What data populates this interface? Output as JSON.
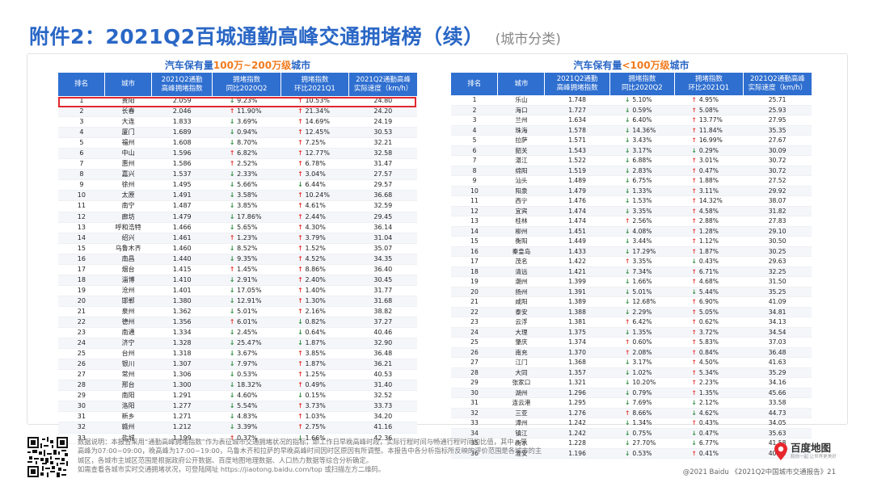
{
  "page": {
    "title": "附件2：2021Q2百城通勤高峰交通拥堵榜（续）",
    "subtitle": "(城市分类)"
  },
  "left_panel": {
    "title_prefix": "汽车保有量",
    "title_highlight": "100万~200万级",
    "title_suffix": "城市",
    "headers": [
      "排名",
      "城市",
      "2021Q2通勤\n高峰拥堵指数",
      "拥堵指数\n同比2020Q2",
      "拥堵指数\n环比2021Q1",
      "2021Q2通勤高峰\n实际速度（km/h）"
    ],
    "rows": [
      [
        "1",
        "贵阳",
        "2.059",
        "down",
        "9.23%",
        "up",
        "10.53%",
        "24.80"
      ],
      [
        "2",
        "长春",
        "2.046",
        "up",
        "11.90%",
        "up",
        "21.34%",
        "24.20"
      ],
      [
        "3",
        "大连",
        "1.833",
        "down",
        "3.69%",
        "up",
        "14.69%",
        "24.19"
      ],
      [
        "4",
        "厦门",
        "1.689",
        "down",
        "0.94%",
        "up",
        "12.45%",
        "30.53"
      ],
      [
        "5",
        "福州",
        "1.608",
        "down",
        "8.70%",
        "up",
        "7.25%",
        "32.21"
      ],
      [
        "6",
        "中山",
        "1.596",
        "up",
        "6.82%",
        "up",
        "12.77%",
        "32.58"
      ],
      [
        "7",
        "惠州",
        "1.586",
        "up",
        "2.52%",
        "up",
        "6.78%",
        "31.47"
      ],
      [
        "8",
        "嘉兴",
        "1.537",
        "down",
        "2.33%",
        "up",
        "3.04%",
        "27.57"
      ],
      [
        "9",
        "徐州",
        "1.495",
        "down",
        "5.66%",
        "down",
        "6.44%",
        "29.57"
      ],
      [
        "10",
        "太原",
        "1.491",
        "down",
        "3.58%",
        "up",
        "10.24%",
        "36.68"
      ],
      [
        "11",
        "南宁",
        "1.487",
        "down",
        "3.85%",
        "up",
        "4.61%",
        "32.59"
      ],
      [
        "12",
        "廊坊",
        "1.479",
        "down",
        "17.86%",
        "up",
        "2.44%",
        "29.45"
      ],
      [
        "13",
        "呼和浩特",
        "1.466",
        "down",
        "5.65%",
        "up",
        "4.30%",
        "36.14"
      ],
      [
        "14",
        "绍兴",
        "1.461",
        "up",
        "1.23%",
        "up",
        "3.79%",
        "31.04"
      ],
      [
        "15",
        "乌鲁木齐",
        "1.460",
        "down",
        "8.52%",
        "up",
        "1.52%",
        "35.07"
      ],
      [
        "16",
        "南昌",
        "1.440",
        "down",
        "9.35%",
        "up",
        "4.52%",
        "34.35"
      ],
      [
        "17",
        "烟台",
        "1.415",
        "up",
        "1.45%",
        "up",
        "8.86%",
        "36.40"
      ],
      [
        "18",
        "淄博",
        "1.410",
        "down",
        "2.91%",
        "up",
        "2.40%",
        "30.45"
      ],
      [
        "19",
        "沧州",
        "1.401",
        "down",
        "17.05%",
        "up",
        "1.40%",
        "31.77"
      ],
      [
        "20",
        "邯郸",
        "1.380",
        "down",
        "12.91%",
        "up",
        "1.30%",
        "31.68"
      ],
      [
        "21",
        "泉州",
        "1.362",
        "down",
        "5.01%",
        "up",
        "2.16%",
        "38.82"
      ],
      [
        "22",
        "德州",
        "1.356",
        "up",
        "6.01%",
        "down",
        "0.82%",
        "37.27"
      ],
      [
        "23",
        "南通",
        "1.334",
        "down",
        "2.45%",
        "down",
        "0.64%",
        "40.46"
      ],
      [
        "24",
        "济宁",
        "1.328",
        "down",
        "25.47%",
        "down",
        "1.87%",
        "32.90"
      ],
      [
        "25",
        "台州",
        "1.318",
        "down",
        "3.67%",
        "up",
        "3.85%",
        "36.48"
      ],
      [
        "26",
        "银川",
        "1.307",
        "down",
        "7.97%",
        "up",
        "1.87%",
        "36.21"
      ],
      [
        "27",
        "常州",
        "1.306",
        "down",
        "0.53%",
        "up",
        "1.25%",
        "40.53"
      ],
      [
        "28",
        "邢台",
        "1.300",
        "down",
        "18.32%",
        "up",
        "0.49%",
        "31.40"
      ],
      [
        "29",
        "南阳",
        "1.291",
        "down",
        "4.60%",
        "down",
        "0.15%",
        "32.52"
      ],
      [
        "30",
        "洛阳",
        "1.277",
        "down",
        "5.54%",
        "up",
        "3.73%",
        "33.73"
      ],
      [
        "31",
        "新乡",
        "1.271",
        "down",
        "4.83%",
        "up",
        "1.03%",
        "34.20"
      ],
      [
        "32",
        "赣州",
        "1.212",
        "down",
        "3.39%",
        "up",
        "2.75%",
        "41.16"
      ],
      [
        "33",
        "盐城",
        "1.199",
        "up",
        "0.37%",
        "down",
        "1.66%",
        "42.36"
      ]
    ]
  },
  "right_panel": {
    "title_prefix": "汽车保有量",
    "title_highlight": "<100万级",
    "title_suffix": "城市",
    "headers": [
      "排名",
      "城市",
      "2021Q2通勤\n高峰拥堵指数",
      "拥堵指数\n同比2020Q2",
      "拥堵指数\n环比2021Q1",
      "2021Q2通勤高峰\n实际速度（km/h）"
    ],
    "rows": [
      [
        "1",
        "乐山",
        "1.748",
        "down",
        "5.10%",
        "up",
        "4.95%",
        "25.71"
      ],
      [
        "2",
        "海口",
        "1.727",
        "down",
        "0.59%",
        "up",
        "5.08%",
        "25.93"
      ],
      [
        "3",
        "兰州",
        "1.634",
        "down",
        "6.40%",
        "up",
        "13.77%",
        "27.95"
      ],
      [
        "4",
        "珠海",
        "1.578",
        "down",
        "14.36%",
        "up",
        "11.84%",
        "35.35"
      ],
      [
        "5",
        "拉萨",
        "1.571",
        "down",
        "3.43%",
        "up",
        "16.99%",
        "27.67"
      ],
      [
        "6",
        "韶关",
        "1.543",
        "down",
        "3.17%",
        "down",
        "0.29%",
        "30.09"
      ],
      [
        "7",
        "湛江",
        "1.522",
        "down",
        "6.88%",
        "up",
        "3.01%",
        "30.72"
      ],
      [
        "8",
        "绵阳",
        "1.519",
        "down",
        "2.83%",
        "up",
        "0.47%",
        "30.72"
      ],
      [
        "9",
        "汕头",
        "1.489",
        "down",
        "6.75%",
        "up",
        "1.88%",
        "27.52"
      ],
      [
        "10",
        "阳泉",
        "1.479",
        "down",
        "1.33%",
        "up",
        "3.11%",
        "29.92"
      ],
      [
        "11",
        "西宁",
        "1.476",
        "down",
        "1.53%",
        "up",
        "14.32%",
        "38.07"
      ],
      [
        "12",
        "宜宾",
        "1.474",
        "down",
        "3.35%",
        "up",
        "4.58%",
        "31.82"
      ],
      [
        "13",
        "桂林",
        "1.474",
        "up",
        "2.56%",
        "up",
        "2.88%",
        "27.83"
      ],
      [
        "14",
        "柳州",
        "1.451",
        "down",
        "4.08%",
        "up",
        "1.28%",
        "29.10"
      ],
      [
        "15",
        "衡阳",
        "1.449",
        "down",
        "3.44%",
        "up",
        "1.12%",
        "30.50"
      ],
      [
        "16",
        "秦皇岛",
        "1.433",
        "down",
        "17.29%",
        "up",
        "1.87%",
        "30.25"
      ],
      [
        "17",
        "茂名",
        "1.422",
        "up",
        "3.35%",
        "down",
        "0.43%",
        "29.63"
      ],
      [
        "18",
        "清远",
        "1.421",
        "down",
        "7.34%",
        "up",
        "6.71%",
        "32.25"
      ],
      [
        "19",
        "潮州",
        "1.399",
        "down",
        "1.66%",
        "up",
        "4.68%",
        "31.50"
      ],
      [
        "20",
        "扬州",
        "1.391",
        "down",
        "5.01%",
        "down",
        "5.44%",
        "35.25"
      ],
      [
        "21",
        "咸阳",
        "1.389",
        "down",
        "12.68%",
        "up",
        "6.90%",
        "41.09"
      ],
      [
        "22",
        "泰安",
        "1.388",
        "down",
        "2.29%",
        "up",
        "5.05%",
        "34.81"
      ],
      [
        "23",
        "云浮",
        "1.381",
        "up",
        "6.42%",
        "up",
        "0.62%",
        "34.13"
      ],
      [
        "24",
        "大理",
        "1.375",
        "down",
        "1.35%",
        "up",
        "3.72%",
        "34.54"
      ],
      [
        "25",
        "肇庆",
        "1.374",
        "up",
        "0.60%",
        "up",
        "5.83%",
        "37.03"
      ],
      [
        "26",
        "南充",
        "1.370",
        "up",
        "2.08%",
        "up",
        "0.84%",
        "36.48"
      ],
      [
        "27",
        "江门",
        "1.368",
        "down",
        "3.17%",
        "up",
        "4.50%",
        "41.63"
      ],
      [
        "28",
        "大同",
        "1.357",
        "down",
        "1.02%",
        "up",
        "5.34%",
        "35.29"
      ],
      [
        "29",
        "张家口",
        "1.321",
        "down",
        "10.20%",
        "up",
        "2.23%",
        "34.16"
      ],
      [
        "30",
        "湖州",
        "1.296",
        "down",
        "0.79%",
        "up",
        "1.35%",
        "45.66"
      ],
      [
        "31",
        "连云港",
        "1.295",
        "down",
        "7.69%",
        "down",
        "2.12%",
        "33.58"
      ],
      [
        "32",
        "三亚",
        "1.276",
        "up",
        "8.66%",
        "down",
        "4.62%",
        "44.73"
      ],
      [
        "33",
        "漳州",
        "1.242",
        "down",
        "1.34%",
        "up",
        "0.43%",
        "34.05"
      ],
      [
        "34",
        "镇江",
        "1.242",
        "down",
        "0.75%",
        "down",
        "0.47%",
        "35.63"
      ],
      [
        "35",
        "衡水",
        "1.228",
        "down",
        "27.70%",
        "down",
        "6.77%",
        "41.58"
      ],
      [
        "36",
        "淮安",
        "1.196",
        "down",
        "0.53%",
        "up",
        "0.41%",
        "40.95"
      ]
    ]
  },
  "footer": {
    "note_lines": [
      "数据说明：本报告采用“通勤高峰拥堵指数”作为表征城市交通拥堵状况的指标，即工作日早晚高峰时段，实际行程时间与畅通行程时间的比值，其中，早",
      "高峰为07:00~09:00，晚高峰为17:00~19:00，乌鲁木齐和拉萨的早晚高峰时间因时区原因有所调整。本报告中各分析指标所反映的评价范围是各城市的主",
      "城区，各城市主城区范围是根据政府公开数据、百度地图地理数据、人口热力数据等综合分析确定。",
      "如需查看各城市实时交通拥堵状况，可登陆网址 https://jiaotong.baidu.com/top 或扫描左方二维码。"
    ],
    "copyright": "@2021 Baidu 《2021Q2中国城市交通报告》21",
    "logo_name": "百度地图",
    "logo_tagline": "和你一起 让世界更美好"
  },
  "colors": {
    "accent": "#2a67c6",
    "header_bg": "#2f6fd0",
    "highlight": "#f07a1d",
    "up_arrow": "#e53935",
    "down_arrow": "#2e8b3e",
    "highlight_box": "#e0282e"
  },
  "icons": {
    "up": "↑",
    "down": "↓",
    "logo": "map-pin-icon",
    "qr": "qr-code-icon"
  }
}
